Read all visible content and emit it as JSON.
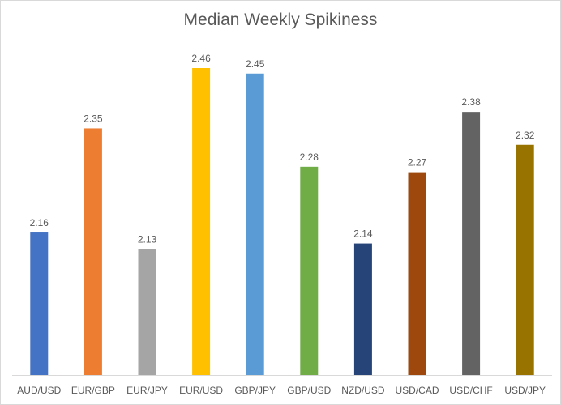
{
  "chart_data": {
    "type": "bar",
    "title": "Median Weekly Spikiness",
    "xlabel": "",
    "ylabel": "",
    "ylim": [
      1.9,
      2.5
    ],
    "grid": false,
    "categories": [
      "AUD/USD",
      "EUR/GBP",
      "EUR/JPY",
      "EUR/USD",
      "GBP/JPY",
      "GBP/USD",
      "NZD/USD",
      "USD/CAD",
      "USD/CHF",
      "USD/JPY"
    ],
    "values": [
      2.16,
      2.35,
      2.13,
      2.46,
      2.45,
      2.28,
      2.14,
      2.27,
      2.38,
      2.32
    ],
    "data_labels": [
      "2.16",
      "2.35",
      "2.13",
      "2.46",
      "2.45",
      "2.28",
      "2.14",
      "2.27",
      "2.38",
      "2.32"
    ],
    "colors": [
      "#4472C4",
      "#ED7D31",
      "#A5A5A5",
      "#FFC000",
      "#5B9BD5",
      "#70AD47",
      "#264478",
      "#9E480E",
      "#636363",
      "#997300"
    ]
  },
  "colors": {
    "axis": "#d9d9d9",
    "text": "#595959"
  }
}
